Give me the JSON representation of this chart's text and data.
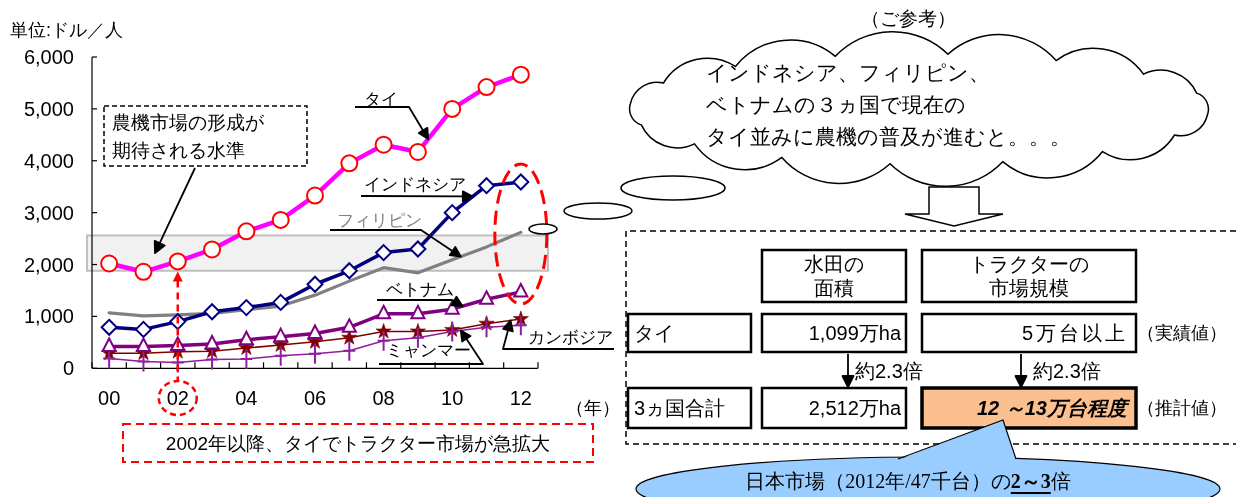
{
  "chart_data": [
    {
      "type": "line",
      "ylabel": "単位:ドル／人",
      "xlabel": "（年）",
      "categories": [
        "00",
        null,
        "02",
        null,
        "04",
        null,
        "06",
        null,
        "08",
        null,
        "10",
        null,
        "12"
      ],
      "ylim": [
        0,
        6000
      ],
      "yticks": [
        0,
        {
          "value": 1000,
          "label": "1,000"
        },
        {
          "value": 2000,
          "label": "2,000"
        },
        {
          "value": 3000,
          "label": "3,000"
        },
        {
          "value": 4000,
          "label": "4,000"
        },
        {
          "value": 5000,
          "label": "5,000"
        },
        {
          "value": 6000,
          "label": "6,000"
        }
      ],
      "series": [
        {
          "name": "タイ",
          "type": "line",
          "color": "#ff00ff",
          "colors": [
            "#ff0000",
            "#ff0000",
            "#ff0000",
            "#ff0000",
            "#ff0000",
            "#ff0000",
            "#ff0000",
            "#ff0000",
            "#ff0000",
            "#ff0000",
            "#ff0000",
            "#ff0000",
            "#ff0000"
          ],
          "marker": "circle",
          "values": [
            2020,
            1860,
            2060,
            2290,
            2640,
            2860,
            3330,
            3950,
            4310,
            4170,
            5000,
            5420,
            5660
          ]
        },
        {
          "name": "インドネシア",
          "type": "line",
          "color": "#000080",
          "marker": "diamond",
          "values": [
            790,
            750,
            900,
            1090,
            1170,
            1270,
            1620,
            1880,
            2230,
            2300,
            3000,
            3520,
            3590
          ]
        },
        {
          "name": "フィリピン",
          "type": "line",
          "color": "#808080",
          "marker": "none",
          "values": [
            1070,
            1010,
            1030,
            1060,
            null,
            1200,
            1410,
            1680,
            1940,
            1840,
            2090,
            2340,
            2620
          ]
        },
        {
          "name": "ベトナム",
          "type": "line",
          "color": "#800080",
          "marker": "triangle",
          "values": [
            420,
            420,
            440,
            470,
            550,
            610,
            670,
            790,
            1050,
            1050,
            1140,
            1330,
            1470
          ]
        },
        {
          "name": "ミャンマー",
          "type": "line",
          "color": "#8e1e9e",
          "marker": "cross",
          "values": [
            190,
            130,
            110,
            170,
            180,
            240,
            280,
            340,
            530,
            590,
            710,
            790,
            830
          ]
        },
        {
          "name": "カンボジア",
          "type": "line",
          "color": "#800000",
          "marker": "star",
          "values": [
            290,
            290,
            320,
            330,
            390,
            450,
            510,
            590,
            710,
            710,
            740,
            860,
            950
          ]
        }
      ],
      "bands": [
        {
          "axis": "y",
          "from": 1880,
          "to": 2560,
          "label": "農機市場の形成が期待される水準",
          "color": "#bfbfbf"
        }
      ],
      "ref_lines": [
        {
          "axis": "x",
          "value": "02",
          "label": "2002年以降、タイでトラクター市場が急拡大",
          "color": "#ff0000",
          "line_style": "dashed"
        }
      ]
    },
    {
      "type": "other",
      "title": "（ご参考）",
      "annotations": [
        "インドネシア、フィリピン、ベトナムの３ヵ国で現在のタイ並みに農機の普及が進むと。。。",
        "水田の面積",
        "トラクターの市場規模",
        "タイ",
        "1,099万ha",
        "5万台以上",
        "（実績値）",
        "約2.3倍",
        "約2.3倍",
        "3ヵ国合計",
        "2,512万ha",
        "12 ～13万台程度",
        "（推計値）",
        "日本市場（2012年/47千台）の**2～3**倍"
      ]
    }
  ]
}
